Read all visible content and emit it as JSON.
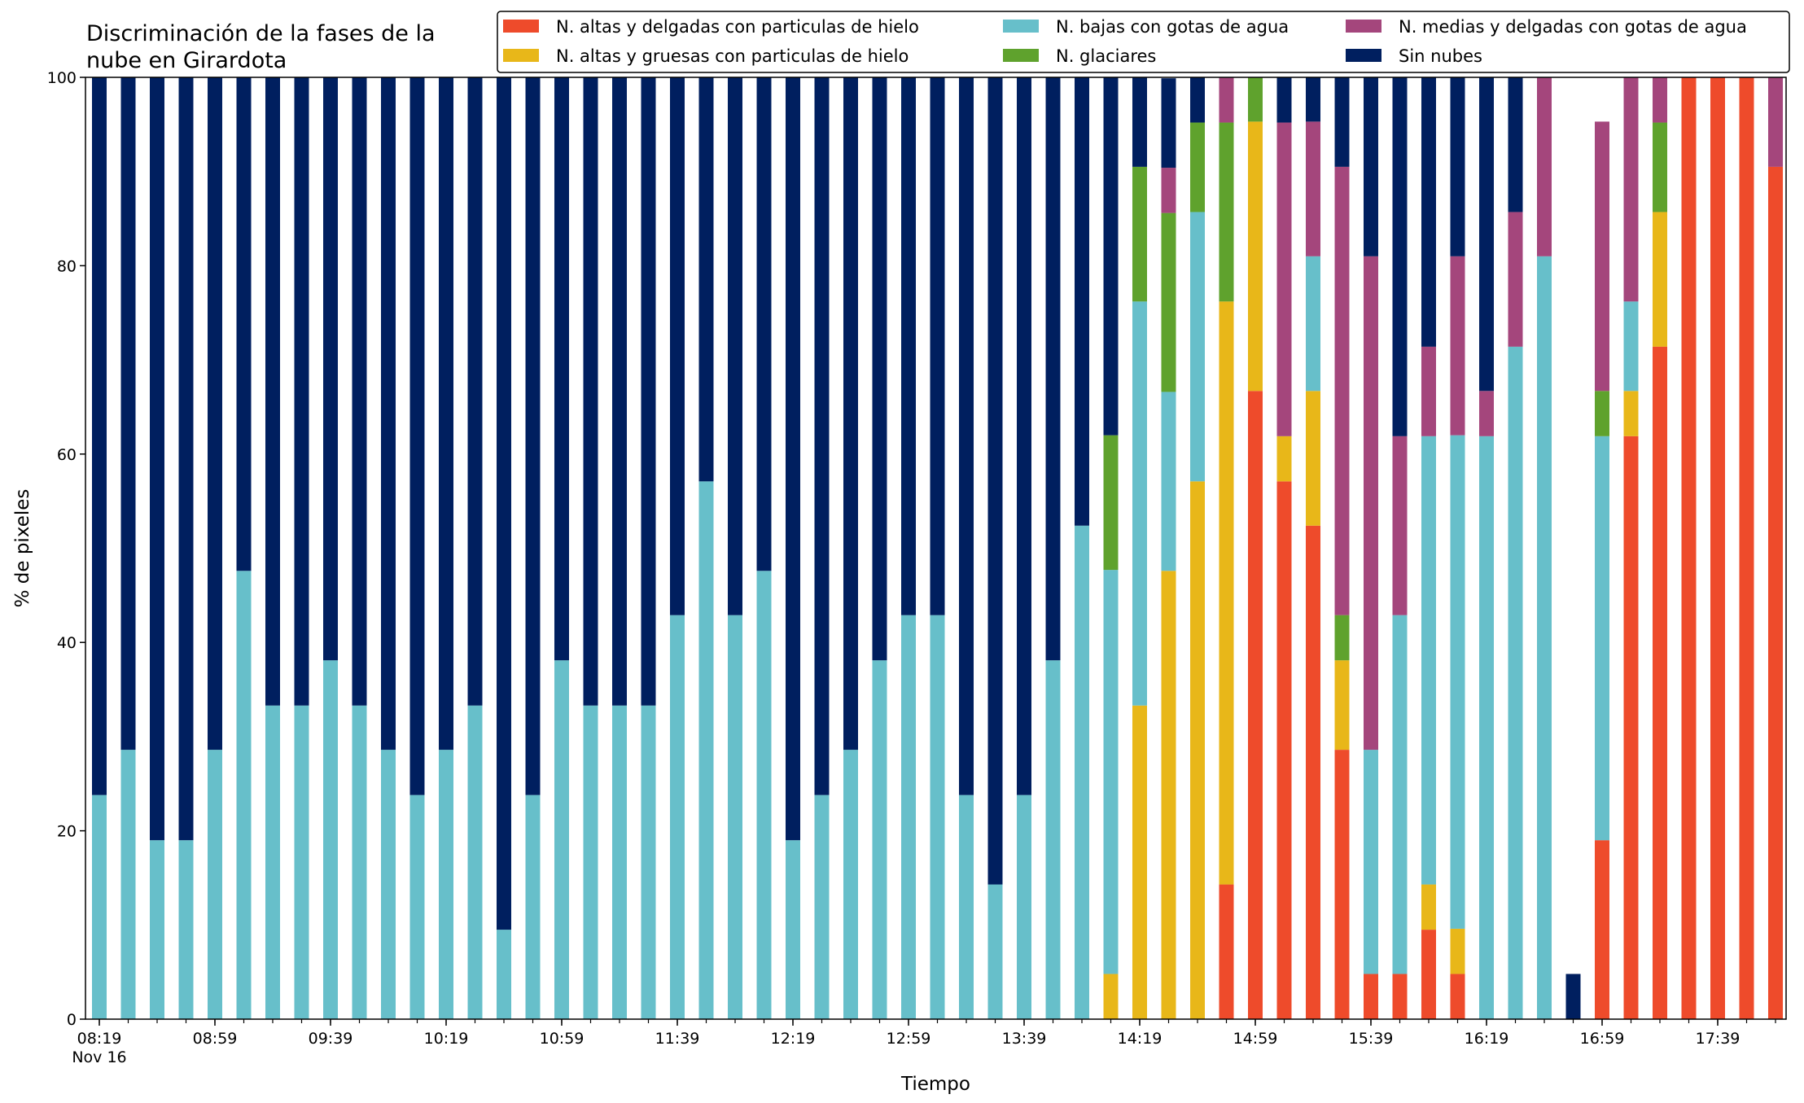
{
  "chart_data": {
    "type": "bar",
    "stacked": true,
    "title_lines": [
      "Discriminación de la fases de la",
      "nube en Girardota"
    ],
    "xlabel": "Tiempo",
    "ylabel": "% de pixeles",
    "ylim": [
      0,
      100
    ],
    "yticks": [
      0,
      20,
      40,
      60,
      80,
      100
    ],
    "x_start": "08:19",
    "x_step_minutes": 10,
    "xtick_labels": [
      {
        "index": 0,
        "label": "08:19",
        "sublabel": "Nov 16"
      },
      {
        "index": 4,
        "label": "08:59"
      },
      {
        "index": 8,
        "label": "09:39"
      },
      {
        "index": 12,
        "label": "10:19"
      },
      {
        "index": 16,
        "label": "10:59"
      },
      {
        "index": 20,
        "label": "11:39"
      },
      {
        "index": 24,
        "label": "12:19"
      },
      {
        "index": 28,
        "label": "12:59"
      },
      {
        "index": 32,
        "label": "13:39"
      },
      {
        "index": 36,
        "label": "14:19"
      },
      {
        "index": 40,
        "label": "14:59"
      },
      {
        "index": 44,
        "label": "15:39"
      },
      {
        "index": 48,
        "label": "16:19"
      },
      {
        "index": 52,
        "label": "16:59"
      },
      {
        "index": 56,
        "label": "17:39"
      }
    ],
    "legend_position": "top-right",
    "legend_columns": 3,
    "series": [
      {
        "name": "N. altas y delgadas con particulas de hielo",
        "color": "#EE4B2B",
        "values": [
          0,
          0,
          0,
          0,
          0,
          0,
          0,
          0,
          0,
          0,
          0,
          0,
          0,
          0,
          0,
          0,
          0,
          0,
          0,
          0,
          0,
          0,
          0,
          0,
          0,
          0,
          0,
          0,
          0,
          0,
          0,
          0,
          0,
          0,
          0,
          0,
          0,
          0,
          0,
          14.3,
          66.7,
          57.1,
          52.4,
          28.6,
          4.8,
          4.8,
          9.5,
          4.8,
          0,
          0,
          0,
          0,
          19,
          61.9,
          71.4,
          100,
          100,
          100,
          90.5
        ]
      },
      {
        "name": "N. altas y gruesas con particulas de hielo",
        "color": "#E8B719",
        "values": [
          0,
          0,
          0,
          0,
          0,
          0,
          0,
          0,
          0,
          0,
          0,
          0,
          0,
          0,
          0,
          0,
          0,
          0,
          0,
          0,
          0,
          0,
          0,
          0,
          0,
          0,
          0,
          0,
          0,
          0,
          0,
          0,
          0,
          0,
          0,
          4.8,
          33.3,
          47.6,
          57.1,
          61.9,
          28.6,
          4.8,
          14.3,
          9.5,
          0,
          0,
          4.8,
          4.8,
          0,
          0,
          0,
          0,
          0,
          4.8,
          14.3,
          0,
          0,
          0,
          0
        ]
      },
      {
        "name": "N. bajas con gotas de agua",
        "color": "#67BFCA",
        "values": [
          23.8,
          28.6,
          19,
          19,
          28.6,
          47.6,
          33.3,
          33.3,
          38.1,
          33.3,
          28.6,
          23.8,
          28.6,
          33.3,
          9.5,
          23.8,
          38.1,
          33.3,
          33.3,
          33.3,
          42.9,
          57.1,
          42.9,
          47.6,
          19,
          23.8,
          28.6,
          38.1,
          42.9,
          42.9,
          23.8,
          14.3,
          23.8,
          38.1,
          52.4,
          42.9,
          42.9,
          19,
          28.6,
          0,
          0,
          0,
          14.3,
          0,
          23.8,
          38.1,
          47.6,
          52.4,
          61.9,
          71.4,
          81,
          0,
          42.9,
          9.5,
          0,
          0,
          0,
          0,
          0
        ]
      },
      {
        "name": "N. glaciares",
        "color": "#5FA22D",
        "values": [
          0,
          0,
          0,
          0,
          0,
          0,
          0,
          0,
          0,
          0,
          0,
          0,
          0,
          0,
          0,
          0,
          0,
          0,
          0,
          0,
          0,
          0,
          0,
          0,
          0,
          0,
          0,
          0,
          0,
          0,
          0,
          0,
          0,
          0,
          0,
          14.3,
          14.3,
          19,
          9.5,
          19,
          4.8,
          0,
          0,
          4.8,
          0,
          0,
          0,
          0,
          0,
          0,
          0,
          0,
          4.8,
          0,
          9.5,
          0,
          0,
          0,
          0
        ]
      },
      {
        "name": "N. medias y delgadas con gotas de agua",
        "color": "#A4467C",
        "values": [
          0,
          0,
          0,
          0,
          0,
          0,
          0,
          0,
          0,
          0,
          0,
          0,
          0,
          0,
          0,
          0,
          0,
          0,
          0,
          0,
          0,
          0,
          0,
          0,
          0,
          0,
          0,
          0,
          0,
          0,
          0,
          0,
          0,
          0,
          0,
          0,
          0,
          4.8,
          0,
          4.8,
          0,
          33.3,
          14.3,
          47.6,
          52.4,
          19,
          9.5,
          19,
          4.8,
          14.3,
          19,
          0,
          28.6,
          23.8,
          4.8,
          0,
          0,
          0,
          9.5
        ]
      },
      {
        "name": "Sin nubes",
        "color": "#001F5F",
        "values": [
          76.2,
          71.4,
          81,
          81,
          71.4,
          52.4,
          66.7,
          66.7,
          61.9,
          66.7,
          71.4,
          76.2,
          71.4,
          66.7,
          90.5,
          76.2,
          61.9,
          66.7,
          66.7,
          66.7,
          57.1,
          42.9,
          57.1,
          52.4,
          81,
          76.2,
          71.4,
          61.9,
          57.1,
          57.1,
          76.2,
          85.7,
          76.2,
          61.9,
          47.6,
          38.1,
          9.5,
          9.5,
          4.8,
          0,
          0,
          4.8,
          4.8,
          9.5,
          19,
          38.1,
          28.6,
          19,
          33.3,
          14.3,
          0,
          4.8,
          0,
          0,
          0,
          0,
          0,
          0,
          0
        ]
      }
    ]
  }
}
